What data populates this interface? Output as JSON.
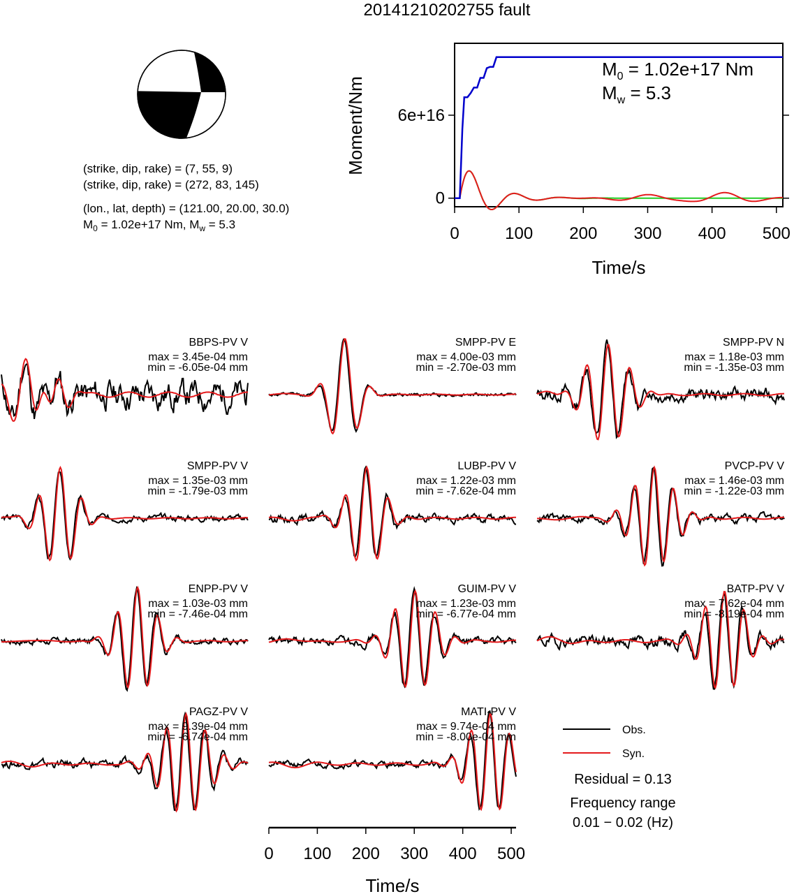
{
  "title": "20141210202755 fault",
  "beachball": {
    "plane1": "(strike, dip, rake) = (7, 55, 9)",
    "plane2": "(strike, dip, rake) = (272, 83, 145)",
    "location": "(lon., lat, depth) = (121.00, 20.00, 30.0)",
    "moment_prefix": "M",
    "moment_text": " = 1.02e+17 Nm, M",
    "mw_text": " = 5.3",
    "sub_0": "0",
    "sub_w": "w"
  },
  "colors": {
    "obs": "#000000",
    "syn": "#e41a1c",
    "cumulative": "#0000cc",
    "rate": "#22cc22"
  },
  "chart_data": [
    {
      "type": "line",
      "name": "moment-function",
      "xlabel": "Time/s",
      "ylabel": "Moment/Nm",
      "xlim": [
        0,
        510
      ],
      "ylim": [
        -6200000000000000.0,
        1.12e+17
      ],
      "xticks": [
        "0",
        "100",
        "200",
        "300",
        "400",
        "500"
      ],
      "xtick_values": [
        0,
        100,
        200,
        300,
        400,
        500
      ],
      "yticks": [
        "0",
        "6e+16"
      ],
      "ytick_values": [
        0,
        6e+16
      ],
      "annotation_m0_label": "M",
      "annotation_m0_sub": "0",
      "annotation_m0_value": " = 1.02e+17 Nm",
      "annotation_mw_label": "M",
      "annotation_mw_sub": "w",
      "annotation_mw_value": " = 5.3",
      "cumulative": {
        "x": [
          0,
          8,
          12,
          15,
          20,
          25,
          30,
          35,
          40,
          45,
          50,
          55,
          60,
          65,
          70,
          510
        ],
        "y": [
          0,
          0,
          5e+16,
          7.3e+16,
          7.3e+16,
          7.6e+16,
          8e+16,
          8e+16,
          8.7e+16,
          8.7e+16,
          9.4e+16,
          9.5e+16,
          9.5e+16,
          1.02e+17,
          1.02e+17,
          1.02e+17
        ]
      },
      "rate_params": {
        "onset": 8,
        "green_amp": 1.9e+16,
        "green_period": 70,
        "green_decay": 40,
        "red_extra": [
          {
            "t": 300,
            "amp": 2500000000000000.0,
            "period": 100
          },
          {
            "t": 420,
            "amp": 4000000000000000.0,
            "period": 100
          }
        ]
      }
    },
    {
      "type": "line",
      "name": "waveform-fits",
      "xlabel": "Time/s",
      "xlim": [
        0,
        510
      ],
      "xticks": [
        "0",
        "100",
        "200",
        "300",
        "400",
        "500"
      ],
      "xtick_values": [
        0,
        100,
        200,
        300,
        400,
        500
      ],
      "stations": [
        {
          "name": "BBPS-PV V",
          "max": "max = 3.45e-04 mm",
          "min": "min = -6.05e-04 mm",
          "seed": 11,
          "noise": 0.18,
          "misfit": 0.9,
          "pulses": [
            {
              "t": 50,
              "amp": 0.55,
              "period": 55,
              "width": 40
            },
            {
              "t": 100,
              "amp": -0.35,
              "period": 40,
              "width": 30
            }
          ]
        },
        {
          "name": "SMPP-PV E",
          "max": "max = 4.00e-03 mm",
          "min": "min = -2.70e-03 mm",
          "seed": 12,
          "noise": 0.02,
          "misfit": 0.15,
          "pulses": [
            {
              "t": 155,
              "amp": 1.0,
              "period": 55,
              "width": 28
            }
          ]
        },
        {
          "name": "SMPP-PV N",
          "max": "max = 1.18e-03 mm",
          "min": "min = -1.35e-03 mm",
          "seed": 13,
          "noise": 0.08,
          "misfit": 0.35,
          "pulses": [
            {
              "t": 145,
              "amp": 0.9,
              "period": 45,
              "width": 40
            }
          ]
        },
        {
          "name": "SMPP-PV V",
          "max": "max = 1.35e-03 mm",
          "min": "min = -1.79e-03 mm",
          "seed": 14,
          "noise": 0.04,
          "misfit": 0.2,
          "pulses": [
            {
              "t": 120,
              "amp": 0.9,
              "period": 45,
              "width": 34
            }
          ]
        },
        {
          "name": "LUBP-PV V",
          "max": "max = 1.22e-03 mm",
          "min": "min = -7.62e-04 mm",
          "seed": 15,
          "noise": 0.05,
          "misfit": 0.3,
          "pulses": [
            {
              "t": 200,
              "amp": 0.9,
              "period": 45,
              "width": 34
            }
          ]
        },
        {
          "name": "PVCP-PV V",
          "max": "max = 1.46e-03 mm",
          "min": "min = -1.22e-03 mm",
          "seed": 16,
          "noise": 0.05,
          "misfit": 0.3,
          "pulses": [
            {
              "t": 240,
              "amp": 0.9,
              "period": 40,
              "width": 40
            }
          ]
        },
        {
          "name": "ENPP-PV V",
          "max": "max = 1.03e-03 mm",
          "min": "min = -7.46e-04 mm",
          "seed": 17,
          "noise": 0.04,
          "misfit": 0.2,
          "pulses": [
            {
              "t": 280,
              "amp": 0.95,
              "period": 42,
              "width": 36
            }
          ]
        },
        {
          "name": "GUIM-PV V",
          "max": "max = 1.23e-03 mm",
          "min": "min = -6.77e-04 mm",
          "seed": 18,
          "noise": 0.05,
          "misfit": 0.35,
          "pulses": [
            {
              "t": 300,
              "amp": 0.9,
              "period": 42,
              "width": 40
            }
          ]
        },
        {
          "name": "BATP-PV V",
          "max": "max = 7.62e-04 mm",
          "min": "min = -8.19e-04 mm",
          "seed": 19,
          "noise": 0.07,
          "misfit": 0.5,
          "pulses": [
            {
              "t": 385,
              "amp": 0.9,
              "period": 40,
              "width": 40
            }
          ]
        },
        {
          "name": "PAGZ-PV V",
          "max": "max = 9.39e-04 mm",
          "min": "min = -6.74e-04 mm",
          "seed": 20,
          "noise": 0.05,
          "misfit": 0.35,
          "pulses": [
            {
              "t": 380,
              "amp": 0.9,
              "period": 40,
              "width": 45
            }
          ]
        },
        {
          "name": "MATI-PV V",
          "max": "max = 9.74e-04 mm",
          "min": "min = -8.00e-04 mm",
          "seed": 21,
          "noise": 0.04,
          "misfit": 0.4,
          "pulses": [
            {
              "t": 455,
              "amp": 0.9,
              "period": 40,
              "width": 40
            }
          ]
        }
      ],
      "legend": {
        "obs": "Obs.",
        "syn": "Syn.",
        "placement": "bottom-right"
      }
    }
  ],
  "residual": "Residual = 0.13",
  "frequency_label": "Frequency range",
  "frequency_value": "0.01 − 0.02 (Hz)"
}
